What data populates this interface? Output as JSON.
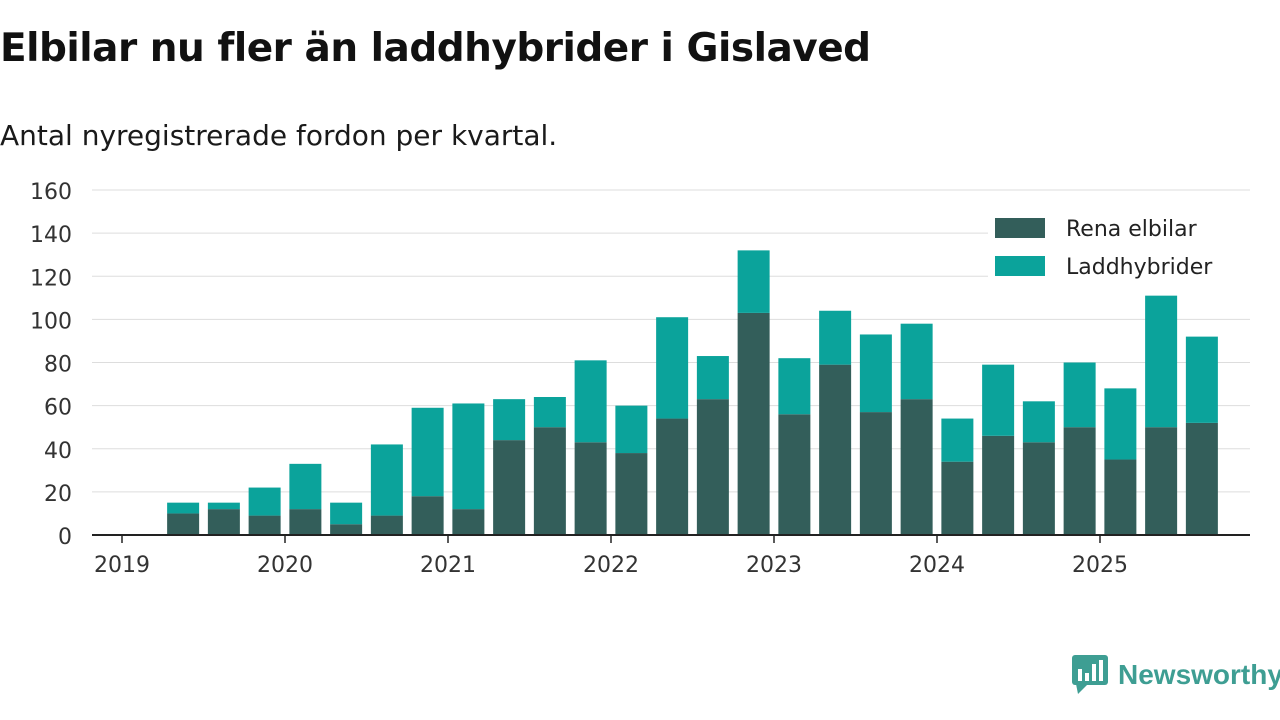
{
  "title": "Elbilar nu fler än laddhybrider i Gislaved",
  "subtitle": "Antal nyregistrerade fordon per kvartal.",
  "brand": {
    "name": "Newsworthy",
    "icon": "newsworthy-logo-icon",
    "color": "#3e9e93"
  },
  "chart_data": {
    "type": "bar",
    "stacked": true,
    "title": "Elbilar nu fler än laddhybrider i Gislaved",
    "subtitle": "Antal nyregistrerade fordon per kvartal.",
    "xlabel": "",
    "ylabel": "",
    "ylim": [
      0,
      160
    ],
    "yticks": [
      0,
      20,
      40,
      60,
      80,
      100,
      120,
      140,
      160
    ],
    "xticks": [
      "2019",
      "2020",
      "2021",
      "2022",
      "2023",
      "2024",
      "2025"
    ],
    "grid": true,
    "legend_position": "top-right",
    "categories": [
      "2019 Q2",
      "2019 Q3",
      "2019 Q4",
      "2020 Q1",
      "2020 Q2",
      "2020 Q3",
      "2020 Q4",
      "2021 Q1",
      "2021 Q2",
      "2021 Q3",
      "2021 Q4",
      "2022 Q1",
      "2022 Q2",
      "2022 Q3",
      "2022 Q4",
      "2023 Q1",
      "2023 Q2",
      "2023 Q3",
      "2023 Q4",
      "2024 Q1",
      "2024 Q2",
      "2024 Q3",
      "2024 Q4",
      "2025 Q1",
      "2025 Q2",
      "2025 Q3"
    ],
    "series": [
      {
        "name": "Rena elbilar",
        "color": "#335e5a",
        "values": [
          10,
          12,
          9,
          12,
          5,
          9,
          18,
          12,
          44,
          50,
          43,
          38,
          54,
          63,
          103,
          56,
          79,
          57,
          63,
          34,
          46,
          43,
          50,
          35,
          50,
          52
        ]
      },
      {
        "name": "Laddhybrider",
        "color": "#0ba39b",
        "values": [
          5,
          3,
          13,
          21,
          10,
          33,
          41,
          49,
          19,
          14,
          38,
          22,
          47,
          20,
          29,
          26,
          25,
          36,
          35,
          20,
          33,
          19,
          30,
          33,
          61,
          40
        ]
      }
    ]
  }
}
